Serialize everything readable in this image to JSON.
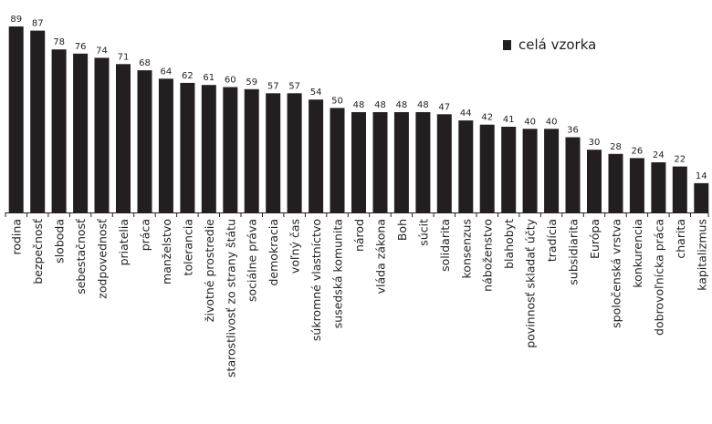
{
  "chart_data": {
    "type": "bar",
    "title": "",
    "xlabel": "",
    "ylabel": "",
    "ylim": [
      0,
      100
    ],
    "grid": false,
    "legend_position": "top-right",
    "bar_color": "#231f20",
    "categories": [
      "rodina",
      "bezpečnosť",
      "sloboda",
      "sebestačnosť",
      "zodpovednosť",
      "priatelia",
      "práca",
      "manželstvo",
      "tolerancia",
      "životné prostredie",
      "starostlivosť zo strany štátu",
      "sociálne práva",
      "demokracia",
      "voľný čas",
      "súkromné vlastníctvo",
      "susedská komunita",
      "národ",
      "vláda zákona",
      "Boh",
      "súcit",
      "solidarita",
      "konsenzus",
      "náboženstvo",
      "blahobyt",
      "povinnosť skladať účty",
      "tradícia",
      "subsidiarita",
      "Európa",
      "spoločenská vrstva",
      "konkurencia",
      "dobrovoľnícka práca",
      "charita",
      "kapitalizmus"
    ],
    "series": [
      {
        "name": "celá vzorka",
        "values": [
          89,
          87,
          78,
          76,
          74,
          71,
          68,
          64,
          62,
          61,
          60,
          59,
          57,
          57,
          54,
          50,
          48,
          48,
          48,
          48,
          47,
          44,
          42,
          41,
          40,
          40,
          36,
          30,
          28,
          26,
          24,
          22,
          14
        ]
      }
    ]
  }
}
